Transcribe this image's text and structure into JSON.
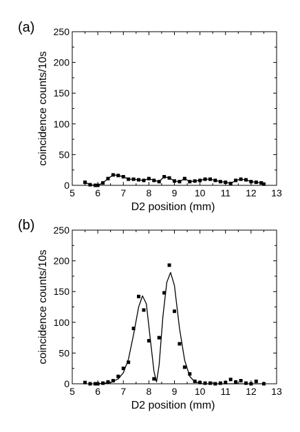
{
  "chart_data": [
    {
      "type": "scatter",
      "panel_label": "(a)",
      "xlabel": "D2 position (mm)",
      "ylabel": "coincidence counts/10s",
      "xlim": [
        5,
        13
      ],
      "ylim": [
        0,
        250
      ],
      "xticks": [
        "5",
        "6",
        "7",
        "8",
        "9",
        "10",
        "11",
        "12",
        "13"
      ],
      "yticks": [
        "0",
        "50",
        "100",
        "150",
        "200",
        "250"
      ],
      "grid": false,
      "series": [
        {
          "mode": "markers+line",
          "points": [
            {
              "x": 5.5,
              "y": 5
            },
            {
              "x": 5.7,
              "y": 1
            },
            {
              "x": 5.9,
              "y": 0
            },
            {
              "x": 6.0,
              "y": 0
            },
            {
              "x": 6.2,
              "y": 4
            },
            {
              "x": 6.4,
              "y": 11
            },
            {
              "x": 6.6,
              "y": 17
            },
            {
              "x": 6.8,
              "y": 16
            },
            {
              "x": 7.0,
              "y": 14
            },
            {
              "x": 7.2,
              "y": 10
            },
            {
              "x": 7.4,
              "y": 10
            },
            {
              "x": 7.6,
              "y": 9
            },
            {
              "x": 7.8,
              "y": 8
            },
            {
              "x": 8.0,
              "y": 11
            },
            {
              "x": 8.2,
              "y": 8
            },
            {
              "x": 8.4,
              "y": 6
            },
            {
              "x": 8.6,
              "y": 14
            },
            {
              "x": 8.8,
              "y": 12
            },
            {
              "x": 9.0,
              "y": 7
            },
            {
              "x": 9.2,
              "y": 6
            },
            {
              "x": 9.4,
              "y": 11
            },
            {
              "x": 9.6,
              "y": 6
            },
            {
              "x": 9.8,
              "y": 7
            },
            {
              "x": 10.0,
              "y": 8
            },
            {
              "x": 10.2,
              "y": 10
            },
            {
              "x": 10.4,
              "y": 10
            },
            {
              "x": 10.6,
              "y": 8
            },
            {
              "x": 10.8,
              "y": 6
            },
            {
              "x": 11.0,
              "y": 5
            },
            {
              "x": 11.2,
              "y": 3
            },
            {
              "x": 11.4,
              "y": 8
            },
            {
              "x": 11.6,
              "y": 10
            },
            {
              "x": 11.8,
              "y": 9
            },
            {
              "x": 12.0,
              "y": 6
            },
            {
              "x": 12.2,
              "y": 5
            },
            {
              "x": 12.4,
              "y": 4
            },
            {
              "x": 12.5,
              "y": 2
            }
          ]
        }
      ]
    },
    {
      "type": "scatter",
      "panel_label": "(b)",
      "xlabel": "D2 position (mm)",
      "ylabel": "coincidence counts/10s",
      "xlim": [
        5,
        13
      ],
      "ylim": [
        0,
        250
      ],
      "xticks": [
        "5",
        "6",
        "7",
        "8",
        "9",
        "10",
        "11",
        "12",
        "13"
      ],
      "yticks": [
        "0",
        "50",
        "100",
        "150",
        "200",
        "250"
      ],
      "grid": false,
      "series": [
        {
          "mode": "markers",
          "points": [
            {
              "x": 5.5,
              "y": 2
            },
            {
              "x": 5.7,
              "y": 0
            },
            {
              "x": 5.9,
              "y": 0
            },
            {
              "x": 6.0,
              "y": 0
            },
            {
              "x": 6.2,
              "y": 1
            },
            {
              "x": 6.4,
              "y": 3
            },
            {
              "x": 6.6,
              "y": 5
            },
            {
              "x": 6.8,
              "y": 12
            },
            {
              "x": 7.0,
              "y": 25
            },
            {
              "x": 7.2,
              "y": 35
            },
            {
              "x": 7.4,
              "y": 90
            },
            {
              "x": 7.6,
              "y": 142
            },
            {
              "x": 7.8,
              "y": 120
            },
            {
              "x": 8.0,
              "y": 70
            },
            {
              "x": 8.2,
              "y": 8
            },
            {
              "x": 8.4,
              "y": 75
            },
            {
              "x": 8.6,
              "y": 148
            },
            {
              "x": 8.8,
              "y": 193
            },
            {
              "x": 9.0,
              "y": 118
            },
            {
              "x": 9.2,
              "y": 65
            },
            {
              "x": 9.4,
              "y": 27
            },
            {
              "x": 9.6,
              "y": 16
            },
            {
              "x": 9.8,
              "y": 4
            },
            {
              "x": 10.0,
              "y": 2
            },
            {
              "x": 10.2,
              "y": 1
            },
            {
              "x": 10.4,
              "y": 1
            },
            {
              "x": 10.6,
              "y": 0
            },
            {
              "x": 10.8,
              "y": 1
            },
            {
              "x": 11.0,
              "y": 2
            },
            {
              "x": 11.2,
              "y": 7
            },
            {
              "x": 11.4,
              "y": 3
            },
            {
              "x": 11.6,
              "y": 5
            },
            {
              "x": 11.8,
              "y": 1
            },
            {
              "x": 12.0,
              "y": 0
            },
            {
              "x": 12.2,
              "y": 4
            },
            {
              "x": 12.5,
              "y": 0
            }
          ]
        },
        {
          "mode": "line",
          "points": [
            {
              "x": 6.0,
              "y": 0
            },
            {
              "x": 6.5,
              "y": 2
            },
            {
              "x": 6.8,
              "y": 8
            },
            {
              "x": 7.0,
              "y": 18
            },
            {
              "x": 7.2,
              "y": 40
            },
            {
              "x": 7.4,
              "y": 80
            },
            {
              "x": 7.6,
              "y": 125
            },
            {
              "x": 7.75,
              "y": 143
            },
            {
              "x": 7.9,
              "y": 130
            },
            {
              "x": 8.05,
              "y": 75
            },
            {
              "x": 8.2,
              "y": 20
            },
            {
              "x": 8.3,
              "y": 3
            },
            {
              "x": 8.4,
              "y": 30
            },
            {
              "x": 8.55,
              "y": 110
            },
            {
              "x": 8.7,
              "y": 165
            },
            {
              "x": 8.85,
              "y": 181
            },
            {
              "x": 9.0,
              "y": 160
            },
            {
              "x": 9.2,
              "y": 90
            },
            {
              "x": 9.4,
              "y": 38
            },
            {
              "x": 9.6,
              "y": 12
            },
            {
              "x": 9.8,
              "y": 3
            },
            {
              "x": 10.1,
              "y": 0
            },
            {
              "x": 12.5,
              "y": 0
            }
          ]
        }
      ]
    }
  ]
}
